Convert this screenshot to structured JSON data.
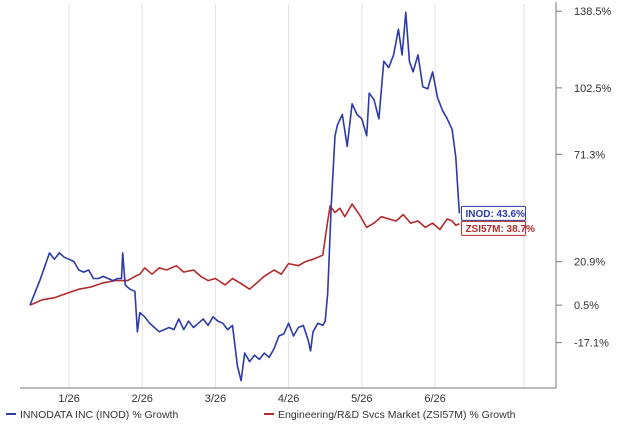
{
  "chart_data": {
    "type": "line",
    "x_tick_labels": [
      "1/26",
      "2/26",
      "3/26",
      "4/26",
      "5/26",
      "6/26"
    ],
    "y_tick_labels": [
      "138.5%",
      "102.5%",
      "71.3%",
      "20.9%",
      "0.5%",
      "-17.1%"
    ],
    "y_ticks": [
      138.5,
      102.5,
      71.3,
      20.9,
      0.5,
      -17.1
    ],
    "ylim": [
      -37,
      140
    ],
    "xlim": [
      0,
      20
    ],
    "x_tick_positions": [
      1.6,
      4.6,
      7.6,
      10.6,
      13.6,
      16.6
    ],
    "grid": {
      "vertical": true,
      "horizontal": false
    },
    "legend_position": "bottom",
    "series": [
      {
        "name": "INNODATA INC (INOD) % Growth",
        "color": "#2c3aa8",
        "values": [
          [
            0.0,
            0.5
          ],
          [
            0.4,
            12
          ],
          [
            0.8,
            25
          ],
          [
            1.0,
            22
          ],
          [
            1.2,
            25
          ],
          [
            1.4,
            23
          ],
          [
            1.6,
            22
          ],
          [
            1.8,
            21
          ],
          [
            2.0,
            17
          ],
          [
            2.2,
            16
          ],
          [
            2.4,
            17
          ],
          [
            2.6,
            13
          ],
          [
            2.8,
            13
          ],
          [
            3.0,
            14
          ],
          [
            3.2,
            13
          ],
          [
            3.4,
            12
          ],
          [
            3.6,
            13
          ],
          [
            3.75,
            13
          ],
          [
            3.8,
            25
          ],
          [
            3.9,
            10
          ],
          [
            4.1,
            8
          ],
          [
            4.3,
            7
          ],
          [
            4.4,
            -12
          ],
          [
            4.5,
            -3
          ],
          [
            4.7,
            -5
          ],
          [
            4.9,
            -8
          ],
          [
            5.1,
            -10
          ],
          [
            5.3,
            -12
          ],
          [
            5.5,
            -11
          ],
          [
            5.7,
            -10
          ],
          [
            5.9,
            -11
          ],
          [
            6.1,
            -6
          ],
          [
            6.3,
            -11
          ],
          [
            6.5,
            -7
          ],
          [
            6.7,
            -10
          ],
          [
            6.9,
            -8
          ],
          [
            7.1,
            -6
          ],
          [
            7.3,
            -9
          ],
          [
            7.5,
            -5
          ],
          [
            7.7,
            -7
          ],
          [
            7.9,
            -8
          ],
          [
            8.1,
            -11
          ],
          [
            8.3,
            -9
          ],
          [
            8.5,
            -28
          ],
          [
            8.65,
            -35
          ],
          [
            8.8,
            -22
          ],
          [
            9.0,
            -26
          ],
          [
            9.2,
            -23
          ],
          [
            9.4,
            -25
          ],
          [
            9.6,
            -22
          ],
          [
            9.8,
            -24
          ],
          [
            10.0,
            -20
          ],
          [
            10.2,
            -14
          ],
          [
            10.4,
            -13
          ],
          [
            10.6,
            -8
          ],
          [
            10.8,
            -14
          ],
          [
            11.0,
            -10
          ],
          [
            11.2,
            -9
          ],
          [
            11.4,
            -16
          ],
          [
            11.5,
            -21
          ],
          [
            11.6,
            -12
          ],
          [
            11.8,
            -8
          ],
          [
            12.0,
            -9
          ],
          [
            12.1,
            -7
          ],
          [
            12.2,
            6
          ],
          [
            12.35,
            48
          ],
          [
            12.5,
            80
          ],
          [
            12.6,
            85
          ],
          [
            12.8,
            90
          ],
          [
            13.0,
            75
          ],
          [
            13.2,
            95
          ],
          [
            13.4,
            90
          ],
          [
            13.6,
            88
          ],
          [
            13.8,
            80
          ],
          [
            13.9,
            100
          ],
          [
            14.1,
            97
          ],
          [
            14.3,
            88
          ],
          [
            14.5,
            115
          ],
          [
            14.7,
            112
          ],
          [
            14.9,
            118
          ],
          [
            15.1,
            130
          ],
          [
            15.25,
            118
          ],
          [
            15.4,
            138
          ],
          [
            15.55,
            115
          ],
          [
            15.7,
            110
          ],
          [
            15.9,
            118
          ],
          [
            16.1,
            103
          ],
          [
            16.3,
            102
          ],
          [
            16.5,
            110
          ],
          [
            16.7,
            98
          ],
          [
            16.9,
            92
          ],
          [
            17.1,
            88
          ],
          [
            17.3,
            83
          ],
          [
            17.45,
            70
          ],
          [
            17.55,
            52
          ],
          [
            17.6,
            43.6
          ]
        ]
      },
      {
        "name": "Engineering/R&D Svcs Market (ZSI57M) % Growth",
        "color": "#b52a2a",
        "values": [
          [
            0.0,
            0.5
          ],
          [
            0.5,
            3
          ],
          [
            1.0,
            4
          ],
          [
            1.5,
            6
          ],
          [
            2.0,
            8
          ],
          [
            2.5,
            9
          ],
          [
            3.0,
            11
          ],
          [
            3.5,
            12
          ],
          [
            4.0,
            12
          ],
          [
            4.3,
            14
          ],
          [
            4.5,
            15
          ],
          [
            4.7,
            18
          ],
          [
            5.0,
            15
          ],
          [
            5.3,
            18
          ],
          [
            5.6,
            17
          ],
          [
            6.0,
            19
          ],
          [
            6.3,
            16
          ],
          [
            6.7,
            17
          ],
          [
            7.0,
            14
          ],
          [
            7.3,
            12
          ],
          [
            7.6,
            13
          ],
          [
            8.0,
            10
          ],
          [
            8.3,
            13
          ],
          [
            8.6,
            11
          ],
          [
            9.0,
            8
          ],
          [
            9.3,
            11
          ],
          [
            9.6,
            14
          ],
          [
            10.0,
            17
          ],
          [
            10.3,
            15
          ],
          [
            10.6,
            20
          ],
          [
            11.0,
            19
          ],
          [
            11.3,
            21
          ],
          [
            11.6,
            22
          ],
          [
            12.0,
            24
          ],
          [
            12.2,
            40
          ],
          [
            12.3,
            47
          ],
          [
            12.5,
            44
          ],
          [
            12.7,
            46
          ],
          [
            12.9,
            42
          ],
          [
            13.2,
            48
          ],
          [
            13.5,
            43
          ],
          [
            13.8,
            37
          ],
          [
            14.1,
            39
          ],
          [
            14.4,
            42
          ],
          [
            14.7,
            41
          ],
          [
            15.0,
            40
          ],
          [
            15.3,
            43
          ],
          [
            15.6,
            39
          ],
          [
            15.9,
            40
          ],
          [
            16.2,
            37
          ],
          [
            16.5,
            39
          ],
          [
            16.8,
            36
          ],
          [
            17.1,
            41
          ],
          [
            17.3,
            40
          ],
          [
            17.45,
            38
          ],
          [
            17.6,
            38.7
          ]
        ]
      }
    ],
    "callouts": [
      {
        "label": "INOD: 43.6%",
        "value": 43.6,
        "border": "#2c3aa8",
        "text_color": "#2c3aa8"
      },
      {
        "label": "ZSI57M: 38.7%",
        "value": 38.7,
        "border": "#b52a2a",
        "text_color": "#b52a2a"
      }
    ],
    "legend": [
      {
        "label": "INNODATA INC (INOD) % Growth",
        "color": "#2c3aa8"
      },
      {
        "label": "Engineering/R&D Svcs Market (ZSI57M) % Growth",
        "color": "#b52a2a"
      }
    ]
  }
}
